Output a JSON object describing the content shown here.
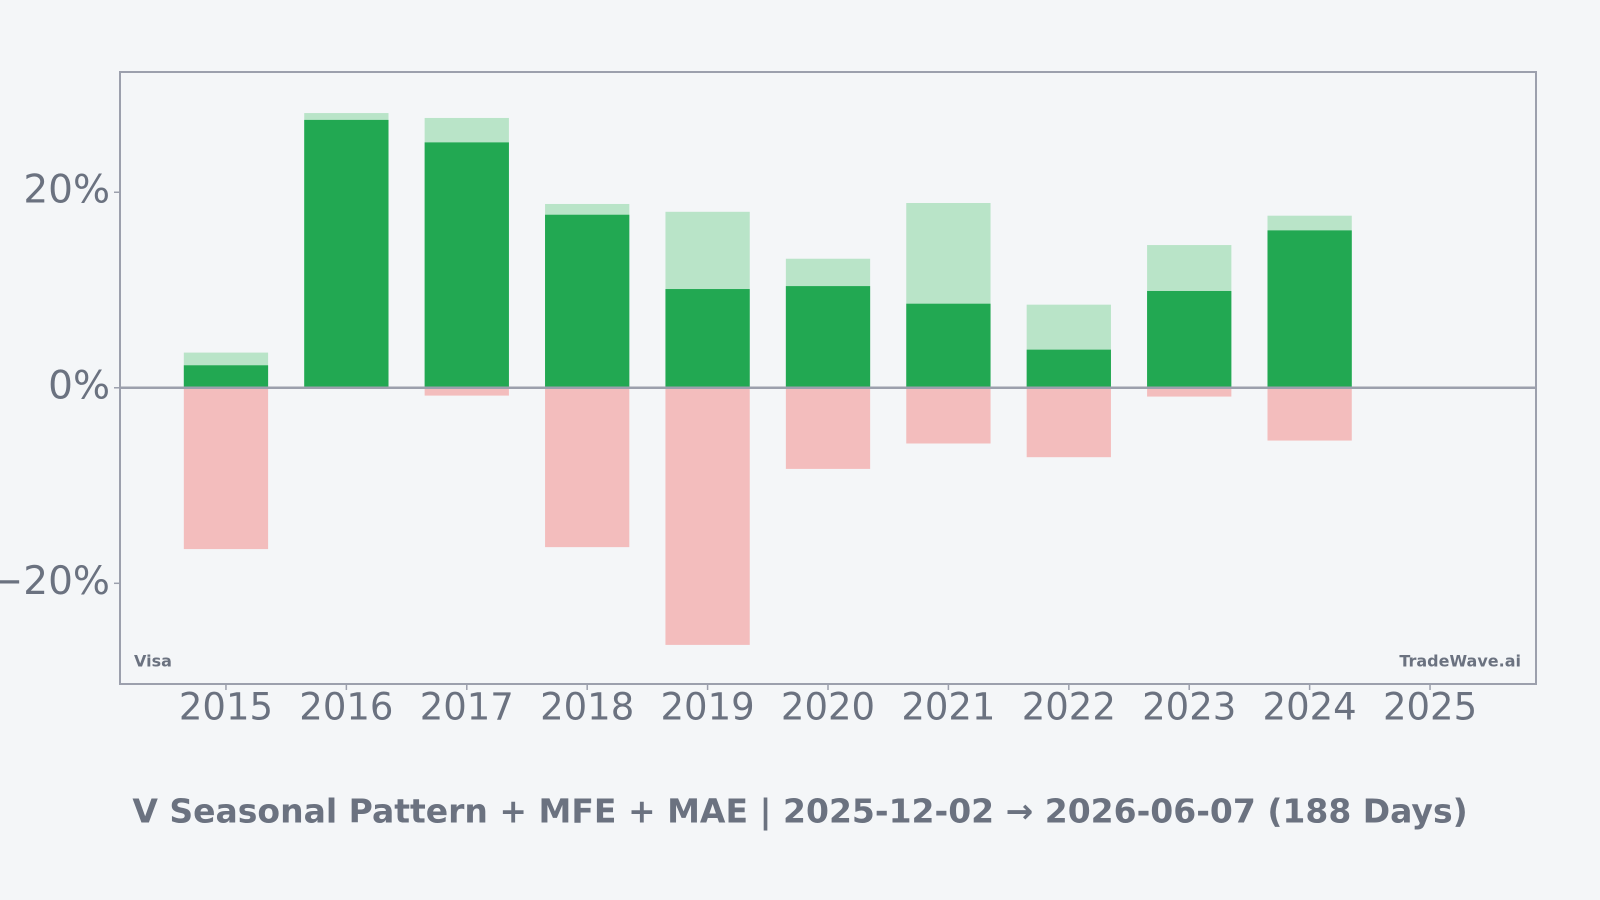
{
  "chart_data": {
    "type": "bar",
    "title": "V Seasonal Pattern + MFE + MAE | 2025-12-02 → 2026-06-07 (188 Days)",
    "annotations": [
      "Visa",
      "TradeWave.ai"
    ],
    "categories": [
      "2015",
      "2016",
      "2017",
      "2018",
      "2019",
      "2020",
      "2021",
      "2022",
      "2023",
      "2024",
      "2025"
    ],
    "series": [
      {
        "color": "#b9e4c8",
        "values": [
          3.6,
          28.1,
          27.6,
          18.8,
          18.0,
          13.2,
          18.9,
          8.5,
          14.6,
          17.6,
          null
        ]
      },
      {
        "color": "#f3bdbd",
        "values": [
          -16.5,
          0,
          -0.8,
          -16.3,
          -26.3,
          -8.3,
          -5.7,
          -7.1,
          -0.9,
          -5.4,
          null
        ]
      },
      {
        "color": "#22a852",
        "values": [
          2.3,
          27.4,
          25.1,
          17.7,
          10.1,
          10.4,
          8.6,
          3.9,
          9.9,
          16.1,
          null
        ]
      }
    ],
    "ylim": [
      -30.3,
      32.3
    ],
    "yticks": [
      {
        "value": -20,
        "label": "−20%"
      },
      {
        "value": 0,
        "label": "0%"
      },
      {
        "value": 20,
        "label": "20%"
      }
    ],
    "grid": false
  }
}
